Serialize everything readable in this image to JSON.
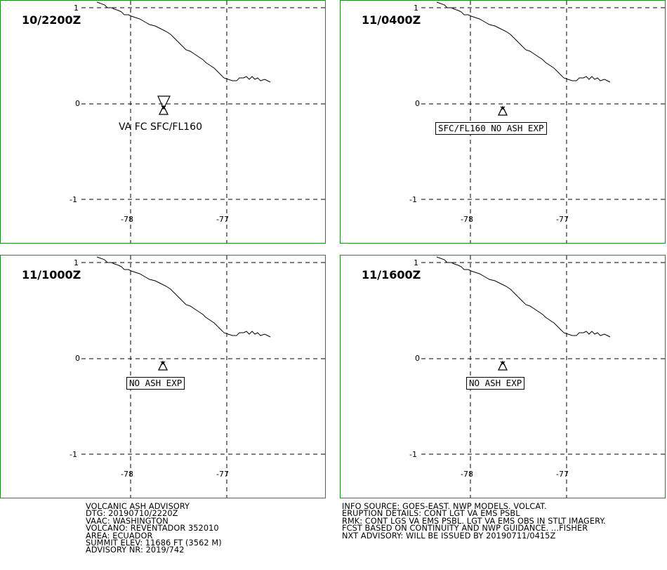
{
  "panels": [
    {
      "time": "10/2200Z",
      "label": "VA FC SFC/FL160",
      "label_boxed": false,
      "ash_polygon": true
    },
    {
      "time": "11/0400Z",
      "label": "SFC/FL160 NO ASH EXP",
      "label_boxed": true,
      "ash_polygon": false
    },
    {
      "time": "11/1000Z",
      "label": "NO ASH EXP",
      "label_boxed": true,
      "ash_polygon": false
    },
    {
      "time": "11/1600Z",
      "label": "NO ASH EXP",
      "label_boxed": true,
      "ash_polygon": false
    }
  ],
  "axes": {
    "lat_ticks": [
      "1",
      "0",
      "-1"
    ],
    "lon_ticks": [
      "-78",
      "-77"
    ]
  },
  "map_features": {
    "volcano_marker": "volcano-triangle-icon",
    "coastline": "coastline-line",
    "grid": "dashed",
    "frame_color": "#1e8a1e"
  },
  "advisory_left": [
    "VOLCANIC ASH ADVISORY",
    "DTG: 20190710/2220Z",
    "VAAC: WASHINGTON",
    "VOLCANO: REVENTADOR 352010",
    "AREA: ECUADOR",
    "SUMMIT ELEV: 11686 FT (3562 M)",
    "ADVISORY NR: 2019/742"
  ],
  "advisory_right": [
    "INFO SOURCE: GOES-EAST. NWP MODELS. VOLCAT.",
    "ERUPTION DETAILS: CONT LGT VA EMS PSBL",
    "RMK: CONT LGS VA EMS PSBL. LGT VA EMS OBS IN STLT IMAGERY.",
    "FCST BASED ON CONTINUITY AND NWP GUIDANCE. ...FISHER",
    "NXT ADVISORY: WILL BE ISSUED BY 20190711/0415Z"
  ]
}
